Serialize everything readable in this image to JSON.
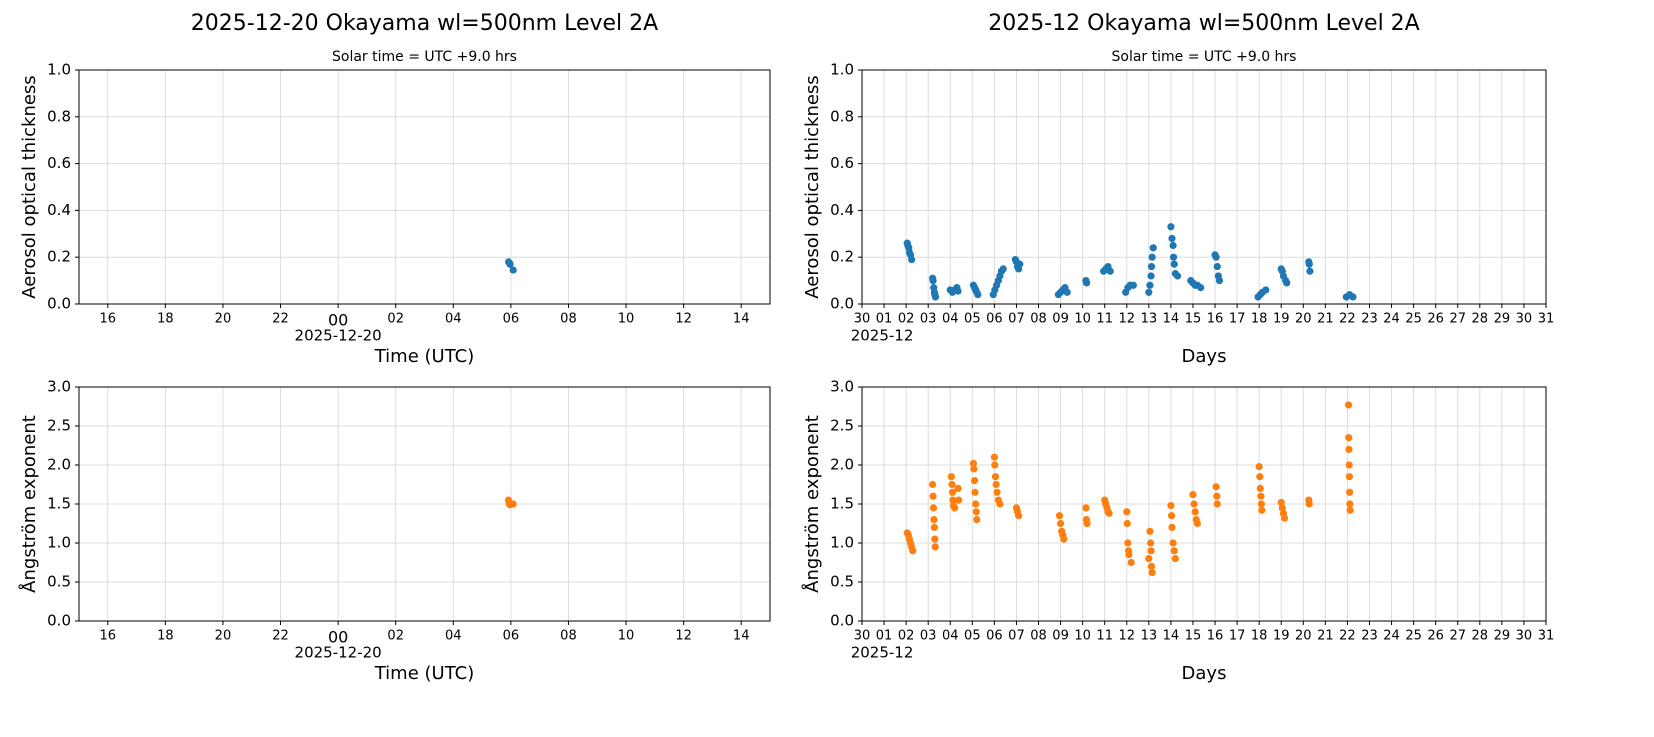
{
  "chart_data": [
    {
      "type": "scatter",
      "title": "2025-12-20  Okayama  wl=500nm  Level 2A",
      "subtitle": "Solar time = UTC +9.0 hrs",
      "xlabel": "Time (UTC)",
      "ylabel": "Aerosol optical thickness",
      "color": "#1f77b4",
      "grid": true,
      "x": [
        5.92,
        5.95,
        5.97,
        6.08
      ],
      "values": [
        0.18,
        0.175,
        0.17,
        0.145
      ],
      "xlim": [
        -9,
        15
      ],
      "ylim": [
        0,
        1
      ],
      "xticks": [
        {
          "value": -8,
          "label": "16"
        },
        {
          "value": -6,
          "label": "18"
        },
        {
          "value": -4,
          "label": "20"
        },
        {
          "value": -2,
          "label": "22"
        },
        {
          "value": 0,
          "label": "00",
          "sublabel": "2025-12-20"
        },
        {
          "value": 2,
          "label": "02"
        },
        {
          "value": 4,
          "label": "04"
        },
        {
          "value": 6,
          "label": "06"
        },
        {
          "value": 8,
          "label": "08"
        },
        10,
        12,
        14
      ],
      "yticks": [
        {
          "value": 0,
          "label": "0.0"
        },
        0.2,
        0.4,
        0.6,
        0.8,
        {
          "value": 1,
          "label": "1.0"
        }
      ]
    },
    {
      "type": "scatter",
      "title": "2025-12  Okayama  wl=500nm  Level 2A",
      "subtitle": "Solar time = UTC +9.0 hrs",
      "xlabel": "Days",
      "ylabel": "Aerosol optical thickness",
      "color": "#1f77b4",
      "grid": true,
      "x": [
        2.05,
        2.08,
        2.12,
        2.15,
        2.2,
        2.25,
        3.2,
        3.22,
        3.25,
        3.28,
        3.3,
        3.33,
        4.0,
        4.1,
        4.2,
        4.3,
        4.35,
        5.05,
        5.1,
        5.15,
        5.2,
        5.25,
        5.95,
        6.02,
        6.1,
        6.18,
        6.25,
        6.32,
        6.4,
        6.95,
        7.0,
        7.05,
        7.1,
        7.15,
        8.9,
        9.0,
        9.1,
        9.2,
        9.3,
        10.15,
        10.18,
        10.95,
        11.05,
        11.15,
        11.25,
        11.95,
        12.05,
        12.15,
        12.3,
        13.0,
        13.05,
        13.1,
        13.12,
        13.15,
        13.2,
        14.0,
        14.05,
        14.1,
        14.12,
        14.15,
        14.2,
        14.3,
        14.9,
        15.0,
        15.1,
        15.2,
        15.35,
        16.0,
        16.05,
        16.1,
        16.15,
        16.2,
        17.95,
        18.05,
        18.15,
        18.3,
        19.0,
        19.05,
        19.1,
        19.2,
        19.25,
        20.25,
        20.27,
        20.3,
        21.95,
        22.1,
        22.25
      ],
      "values": [
        0.26,
        0.25,
        0.24,
        0.22,
        0.21,
        0.19,
        0.11,
        0.1,
        0.07,
        0.05,
        0.04,
        0.03,
        0.06,
        0.05,
        0.06,
        0.07,
        0.055,
        0.08,
        0.07,
        0.06,
        0.05,
        0.04,
        0.04,
        0.06,
        0.08,
        0.1,
        0.12,
        0.14,
        0.15,
        0.19,
        0.18,
        0.16,
        0.15,
        0.17,
        0.04,
        0.05,
        0.06,
        0.07,
        0.05,
        0.1,
        0.09,
        0.14,
        0.15,
        0.16,
        0.14,
        0.05,
        0.07,
        0.08,
        0.08,
        0.05,
        0.08,
        0.12,
        0.16,
        0.2,
        0.24,
        0.33,
        0.28,
        0.25,
        0.2,
        0.17,
        0.13,
        0.12,
        0.1,
        0.09,
        0.08,
        0.08,
        0.07,
        0.21,
        0.2,
        0.16,
        0.12,
        0.1,
        0.03,
        0.04,
        0.05,
        0.06,
        0.15,
        0.14,
        0.12,
        0.1,
        0.09,
        0.18,
        0.17,
        0.14,
        0.03,
        0.04,
        0.03
      ],
      "xlim": [
        0,
        31
      ],
      "ylim": [
        0,
        1
      ],
      "xticks": [
        {
          "value": 0,
          "label": "30"
        },
        {
          "value": 1,
          "label": "01",
          "sublabel": "2025-12"
        },
        {
          "value": 2,
          "label": "02"
        },
        {
          "value": 3,
          "label": "03"
        },
        {
          "value": 4,
          "label": "04"
        },
        {
          "value": 5,
          "label": "05"
        },
        {
          "value": 6,
          "label": "06"
        },
        {
          "value": 7,
          "label": "07"
        },
        {
          "value": 8,
          "label": "08"
        },
        {
          "value": 9,
          "label": "09"
        },
        10,
        11,
        12,
        13,
        14,
        15,
        16,
        17,
        18,
        19,
        20,
        21,
        22,
        23,
        24,
        25,
        26,
        27,
        28,
        29,
        30,
        31
      ],
      "yticks": [
        {
          "value": 0,
          "label": "0.0"
        },
        0.2,
        0.4,
        0.6,
        0.8,
        {
          "value": 1,
          "label": "1.0"
        }
      ]
    },
    {
      "type": "scatter",
      "xlabel": "Time (UTC)",
      "ylabel": "Ångström exponent",
      "color": "#ff7f0e",
      "grid": true,
      "x": [
        5.92,
        5.94,
        5.95,
        5.97,
        6.08
      ],
      "values": [
        1.55,
        1.52,
        1.5,
        1.49,
        1.5
      ],
      "xlim": [
        -9,
        15
      ],
      "ylim": [
        0,
        3
      ],
      "xticks": [
        {
          "value": -8,
          "label": "16"
        },
        {
          "value": -6,
          "label": "18"
        },
        {
          "value": -4,
          "label": "20"
        },
        {
          "value": -2,
          "label": "22"
        },
        {
          "value": 0,
          "label": "00",
          "sublabel": "2025-12-20"
        },
        {
          "value": 2,
          "label": "02"
        },
        {
          "value": 4,
          "label": "04"
        },
        {
          "value": 6,
          "label": "06"
        },
        {
          "value": 8,
          "label": "08"
        },
        10,
        12,
        14
      ],
      "yticks": [
        {
          "value": 0,
          "label": "0.0"
        },
        0.5,
        {
          "value": 1,
          "label": "1.0"
        },
        1.5,
        {
          "value": 2,
          "label": "2.0"
        },
        2.5,
        {
          "value": 3,
          "label": "3.0"
        }
      ]
    },
    {
      "type": "scatter",
      "xlabel": "Days",
      "ylabel": "Ångström exponent",
      "color": "#ff7f0e",
      "grid": true,
      "x": [
        2.05,
        2.1,
        2.15,
        2.2,
        2.25,
        2.3,
        3.2,
        3.22,
        3.24,
        3.26,
        3.28,
        3.3,
        3.32,
        4.05,
        4.08,
        4.1,
        4.12,
        4.15,
        4.2,
        4.35,
        4.38,
        5.05,
        5.07,
        5.1,
        5.12,
        5.15,
        5.18,
        5.2,
        6.0,
        6.02,
        6.05,
        6.08,
        6.12,
        6.18,
        6.25,
        7.0,
        7.05,
        7.1,
        8.95,
        9.0,
        9.05,
        9.1,
        9.15,
        10.15,
        10.17,
        10.2,
        11.0,
        11.05,
        11.1,
        11.15,
        11.2,
        12.0,
        12.02,
        12.05,
        12.08,
        12.1,
        12.2,
        13.0,
        13.05,
        13.08,
        13.1,
        13.12,
        13.15,
        14.0,
        14.03,
        14.05,
        14.1,
        14.15,
        14.2,
        15.0,
        15.05,
        15.1,
        15.15,
        15.2,
        16.05,
        16.08,
        16.1,
        18.0,
        18.03,
        18.05,
        18.08,
        18.1,
        18.12,
        19.0,
        19.05,
        19.1,
        19.15,
        20.25,
        20.27,
        22.05,
        22.06,
        22.07,
        22.08,
        22.09,
        22.1,
        22.11,
        22.12
      ],
      "values": [
        1.13,
        1.1,
        1.05,
        1.0,
        0.95,
        0.9,
        1.75,
        1.6,
        1.45,
        1.3,
        1.2,
        1.05,
        0.95,
        1.85,
        1.75,
        1.65,
        1.55,
        1.48,
        1.45,
        1.7,
        1.55,
        2.02,
        1.95,
        1.8,
        1.65,
        1.5,
        1.4,
        1.3,
        2.1,
        2.0,
        1.85,
        1.75,
        1.65,
        1.55,
        1.5,
        1.45,
        1.4,
        1.35,
        1.35,
        1.25,
        1.15,
        1.1,
        1.05,
        1.45,
        1.3,
        1.25,
        1.55,
        1.5,
        1.45,
        1.4,
        1.38,
        1.4,
        1.25,
        1.0,
        0.9,
        0.85,
        0.75,
        0.8,
        1.15,
        1.0,
        0.9,
        0.7,
        0.62,
        1.48,
        1.35,
        1.2,
        1.0,
        0.9,
        0.8,
        1.62,
        1.5,
        1.4,
        1.3,
        1.25,
        1.72,
        1.6,
        1.5,
        1.98,
        1.85,
        1.7,
        1.6,
        1.5,
        1.42,
        1.52,
        1.45,
        1.38,
        1.32,
        1.55,
        1.5,
        2.77,
        2.35,
        2.2,
        2.0,
        1.85,
        1.65,
        1.5,
        1.42
      ],
      "xlim": [
        0,
        31
      ],
      "ylim": [
        0,
        3
      ],
      "xticks": [
        {
          "value": 0,
          "label": "30"
        },
        {
          "value": 1,
          "label": "01",
          "sublabel": "2025-12"
        },
        {
          "value": 2,
          "label": "02"
        },
        {
          "value": 3,
          "label": "03"
        },
        {
          "value": 4,
          "label": "04"
        },
        {
          "value": 5,
          "label": "05"
        },
        {
          "value": 6,
          "label": "06"
        },
        {
          "value": 7,
          "label": "07"
        },
        {
          "value": 8,
          "label": "08"
        },
        {
          "value": 9,
          "label": "09"
        },
        10,
        11,
        12,
        13,
        14,
        15,
        16,
        17,
        18,
        19,
        20,
        21,
        22,
        23,
        24,
        25,
        26,
        27,
        28,
        29,
        30,
        31
      ],
      "yticks": [
        {
          "value": 0,
          "label": "0.0"
        },
        0.5,
        {
          "value": 1,
          "label": "1.0"
        },
        1.5,
        {
          "value": 2,
          "label": "2.0"
        },
        2.5,
        {
          "value": 3,
          "label": "3.0"
        }
      ]
    }
  ]
}
